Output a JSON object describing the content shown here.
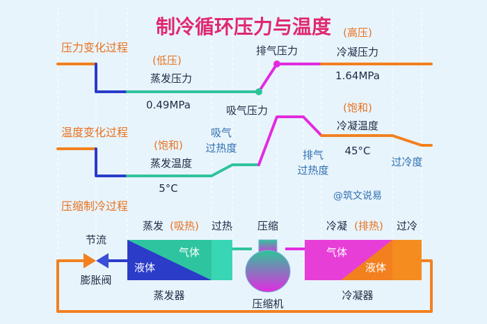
{
  "title": "制冷循环压力与温度",
  "colors": {
    "title": "#e0286e",
    "section": "#e8711e",
    "label": "#1f2a44",
    "accent": "#e8711e",
    "blue": "#2a3cc8",
    "green": "#2ec49a",
    "magenta": "#e22be0",
    "orange": "#f2801f",
    "watermark": "#2f6fb2"
  },
  "sections": {
    "pressure": "压力变化过程",
    "temperature": "温度变化过程",
    "process": "压缩制冷过程"
  },
  "pressure": {
    "low_tag": "(低压)",
    "evap_label": "蒸发压力",
    "evap_value": "0.49MPa",
    "suction_label": "吸气压力",
    "discharge_label": "排气压力",
    "high_tag": "(高压)",
    "cond_label": "冷凝压力",
    "cond_value": "1.64MPa"
  },
  "temperature": {
    "sat_tag_evap": "(饱和)",
    "evap_label": "蒸发温度",
    "evap_value": "5°C",
    "suction_superheat_1": "吸气",
    "suction_superheat_2": "过热度",
    "discharge_superheat_1": "排气",
    "discharge_superheat_2": "过热度",
    "sat_tag_cond": "(饱和)",
    "cond_label": "冷凝温度",
    "cond_value": "45°C",
    "subcool_label": "过冷度"
  },
  "watermark": "@筑文说易",
  "process": {
    "throttle_label": "节流",
    "valve_label": "膨胀阀",
    "evap_phase_a": "蒸发",
    "evap_phase_b": "(吸热)",
    "superheat_label": "过热",
    "compress_label": "压缩",
    "cond_phase_a": "冷凝",
    "cond_phase_b": "(排热)",
    "subcool_label": "过冷",
    "evaporator_gas": "气体",
    "evaporator_liquid": "液体",
    "condenser_gas": "气体",
    "condenser_liquid": "液体",
    "evaporator_name": "蒸发器",
    "compressor_name": "压缩机",
    "condenser_name": "冷凝器"
  }
}
